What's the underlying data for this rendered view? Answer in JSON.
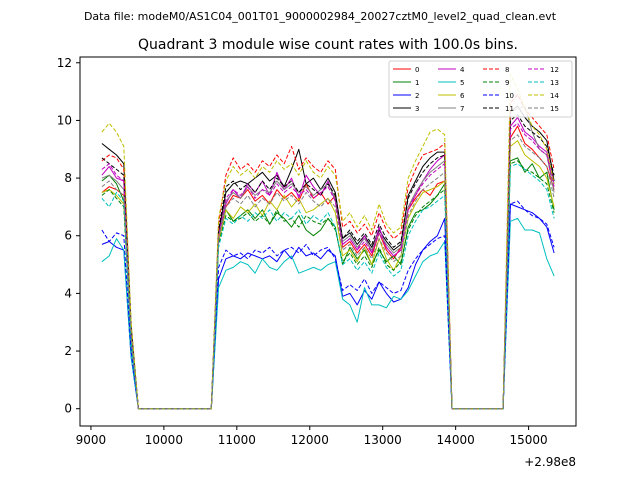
{
  "suptitle": "Data file: modeM0/AS1C04_001T01_9000002984_20027cztM0_level2_quad_clean.evt",
  "chart_data": {
    "type": "line",
    "title": "Quadrant 3 module wise count rates with 100.0s bins.",
    "xlabel": "",
    "ylabel": "",
    "x_offset_label": "+2.98e8",
    "xlim": [
      8850,
      15650
    ],
    "ylim": [
      -0.6,
      12.2
    ],
    "x_ticks": [
      9000,
      10000,
      11000,
      12000,
      13000,
      14000,
      15000
    ],
    "x_tick_labels": [
      "9000",
      "10000",
      "11000",
      "12000",
      "13000",
      "14000",
      "15000"
    ],
    "y_ticks": [
      0,
      2,
      4,
      6,
      8,
      10,
      12
    ],
    "y_tick_labels": [
      "0",
      "2",
      "4",
      "6",
      "8",
      "10",
      "12"
    ],
    "grid": false,
    "legend_placement": "top-right",
    "legend_columns": 4,
    "x": [
      9150,
      9250,
      9350,
      9450,
      9550,
      9650,
      9750,
      9850,
      9950,
      10050,
      10150,
      10250,
      10350,
      10450,
      10550,
      10650,
      10750,
      10850,
      10950,
      11050,
      11150,
      11250,
      11350,
      11450,
      11550,
      11650,
      11750,
      11850,
      11950,
      12050,
      12150,
      12250,
      12350,
      12450,
      12550,
      12650,
      12750,
      12850,
      12950,
      13050,
      13150,
      13250,
      13350,
      13450,
      13550,
      13650,
      13750,
      13850,
      13950,
      14050,
      14150,
      14250,
      14350,
      14450,
      14550,
      14650,
      14750,
      14850,
      14950,
      15050,
      15150,
      15250,
      15350
    ],
    "series": [
      {
        "name": "0",
        "color": "#ff0000",
        "dash": false,
        "values": [
          7.5,
          7.7,
          7.6,
          7.4,
          2.5,
          0,
          0,
          0,
          0,
          0,
          0,
          0,
          0,
          0,
          0,
          0,
          5.9,
          7.0,
          7.4,
          7.3,
          7.6,
          7.2,
          7.4,
          7.1,
          7.6,
          7.3,
          7.5,
          7.2,
          7.8,
          7.3,
          7.5,
          7.1,
          7.4,
          5.6,
          5.8,
          5.4,
          5.7,
          5.3,
          6.1,
          5.5,
          5.2,
          5.6,
          6.9,
          7.3,
          7.6,
          7.4,
          7.8,
          7.9,
          0,
          0,
          0,
          0,
          0,
          0,
          0,
          0,
          9.4,
          9.8,
          9.2,
          9.0,
          8.7,
          8.4,
          7.6
        ]
      },
      {
        "name": "1",
        "color": "#008000",
        "dash": false,
        "values": [
          7.9,
          8.1,
          7.8,
          7.2,
          2.4,
          0,
          0,
          0,
          0,
          0,
          0,
          0,
          0,
          0,
          0,
          0,
          5.8,
          6.9,
          6.5,
          6.7,
          6.9,
          6.6,
          6.9,
          6.4,
          6.8,
          6.6,
          6.3,
          6.7,
          6.2,
          6.0,
          6.2,
          6.6,
          6.3,
          5.0,
          5.6,
          5.2,
          5.5,
          5.0,
          5.5,
          5.1,
          5.3,
          5.0,
          6.3,
          6.8,
          6.9,
          7.1,
          7.4,
          7.8,
          0,
          0,
          0,
          0,
          0,
          0,
          0,
          0,
          8.6,
          8.7,
          8.2,
          8.5,
          8.0,
          8.2,
          6.9
        ]
      },
      {
        "name": "2",
        "color": "#0000ff",
        "dash": false,
        "values": [
          5.7,
          5.8,
          5.6,
          5.5,
          1.8,
          0,
          0,
          0,
          0,
          0,
          0,
          0,
          0,
          0,
          0,
          0,
          4.5,
          5.2,
          5.3,
          5.2,
          5.4,
          5.3,
          5.2,
          5.3,
          5.1,
          5.5,
          5.2,
          5.6,
          5.3,
          5.4,
          5.2,
          5.5,
          5.3,
          3.9,
          4.0,
          3.6,
          4.1,
          3.8,
          4.4,
          4.0,
          3.7,
          3.8,
          4.2,
          5.0,
          5.5,
          5.8,
          6.0,
          6.6,
          0,
          0,
          0,
          0,
          0,
          0,
          0,
          0,
          7.1,
          7.0,
          6.9,
          6.8,
          6.6,
          6.3,
          5.4
        ]
      },
      {
        "name": "3",
        "color": "#000000",
        "dash": false,
        "values": [
          9.2,
          9.0,
          8.8,
          8.5,
          2.9,
          0,
          0,
          0,
          0,
          0,
          0,
          0,
          0,
          0,
          0,
          0,
          6.1,
          7.5,
          7.8,
          7.9,
          7.8,
          8.0,
          8.2,
          7.9,
          8.1,
          7.7,
          8.3,
          9.0,
          7.8,
          8.0,
          7.6,
          8.0,
          7.5,
          5.9,
          6.1,
          5.7,
          6.0,
          5.6,
          6.2,
          5.8,
          5.5,
          5.7,
          7.4,
          7.9,
          8.4,
          8.7,
          8.9,
          8.9,
          0,
          0,
          0,
          0,
          0,
          0,
          0,
          0,
          10.3,
          10.5,
          10.1,
          9.8,
          9.6,
          9.3,
          7.9
        ]
      },
      {
        "name": "4",
        "color": "#c000c0",
        "dash": false,
        "values": [
          8.1,
          8.4,
          8.0,
          7.9,
          2.6,
          0,
          0,
          0,
          0,
          0,
          0,
          0,
          0,
          0,
          0,
          0,
          5.9,
          7.1,
          7.6,
          7.3,
          7.8,
          7.5,
          7.9,
          7.4,
          8.2,
          7.6,
          8.0,
          7.3,
          8.1,
          7.7,
          7.4,
          7.9,
          7.2,
          5.7,
          5.9,
          5.5,
          6.0,
          5.4,
          6.3,
          5.6,
          5.3,
          5.5,
          7.0,
          7.4,
          7.9,
          8.3,
          8.6,
          8.8,
          0,
          0,
          0,
          0,
          0,
          0,
          0,
          0,
          9.8,
          10.1,
          9.6,
          9.4,
          9.1,
          8.9,
          7.8
        ]
      },
      {
        "name": "5",
        "color": "#00bfbf",
        "dash": false,
        "values": [
          5.1,
          5.3,
          5.9,
          5.5,
          1.8,
          0,
          0,
          0,
          0,
          0,
          0,
          0,
          0,
          0,
          0,
          0,
          4.2,
          4.8,
          4.9,
          5.1,
          5.0,
          4.7,
          5.2,
          4.9,
          4.8,
          5.1,
          5.3,
          4.7,
          4.8,
          4.9,
          4.8,
          5.0,
          5.1,
          3.8,
          3.6,
          3.0,
          4.2,
          3.6,
          3.6,
          3.5,
          3.9,
          3.8,
          4.1,
          4.6,
          5.1,
          5.3,
          5.4,
          5.8,
          0,
          0,
          0,
          0,
          0,
          0,
          0,
          0,
          6.5,
          6.6,
          6.2,
          6.2,
          6.1,
          5.2,
          4.6
        ]
      },
      {
        "name": "6",
        "color": "#bfbf00",
        "dash": false,
        "values": [
          7.5,
          7.6,
          7.4,
          7.1,
          2.4,
          0,
          0,
          0,
          0,
          0,
          0,
          0,
          0,
          0,
          0,
          0,
          5.8,
          6.9,
          6.6,
          7.0,
          6.8,
          7.1,
          6.7,
          7.2,
          6.9,
          7.4,
          7.0,
          7.3,
          6.8,
          6.9,
          7.1,
          7.3,
          6.8,
          5.3,
          5.5,
          5.1,
          5.6,
          5.0,
          5.9,
          5.2,
          4.8,
          5.3,
          6.6,
          7.1,
          7.5,
          7.6,
          7.7,
          7.9,
          0,
          0,
          0,
          0,
          0,
          0,
          0,
          0,
          9.1,
          9.3,
          8.8,
          8.6,
          8.4,
          8.0,
          7.0
        ]
      },
      {
        "name": "7",
        "color": "#808080",
        "dash": false,
        "values": [
          8.0,
          8.1,
          7.9,
          7.6,
          2.5,
          0,
          0,
          0,
          0,
          0,
          0,
          0,
          0,
          0,
          0,
          0,
          6.0,
          7.2,
          7.5,
          7.3,
          7.7,
          7.4,
          7.6,
          7.5,
          7.9,
          7.6,
          7.8,
          7.5,
          7.7,
          7.4,
          7.6,
          7.8,
          7.3,
          5.8,
          6.0,
          5.6,
          5.9,
          5.5,
          6.1,
          5.7,
          5.4,
          5.6,
          7.0,
          7.5,
          7.9,
          8.2,
          8.4,
          8.6,
          0,
          0,
          0,
          0,
          0,
          0,
          0,
          0,
          10.3,
          10.4,
          10.5,
          9.6,
          9.0,
          8.8,
          7.5
        ]
      },
      {
        "name": "8",
        "color": "#ff0000",
        "dash": true,
        "values": [
          8.6,
          8.8,
          8.7,
          8.3,
          2.8,
          0,
          0,
          0,
          0,
          0,
          0,
          0,
          0,
          0,
          0,
          0,
          6.4,
          8.1,
          8.7,
          8.3,
          8.5,
          8.2,
          8.6,
          8.4,
          8.8,
          8.5,
          9.1,
          8.3,
          8.7,
          8.4,
          8.2,
          8.6,
          8.3,
          6.3,
          6.5,
          6.1,
          6.4,
          6.0,
          6.8,
          6.2,
          5.9,
          6.1,
          7.7,
          8.3,
          8.8,
          8.9,
          9.0,
          9.2,
          0,
          0,
          0,
          0,
          0,
          0,
          0,
          0,
          10.6,
          10.9,
          10.4,
          10.1,
          9.8,
          9.5,
          8.3
        ]
      },
      {
        "name": "9",
        "color": "#008000",
        "dash": true,
        "values": [
          7.4,
          7.6,
          7.3,
          7.0,
          2.3,
          0,
          0,
          0,
          0,
          0,
          0,
          0,
          0,
          0,
          0,
          0,
          5.7,
          6.7,
          6.5,
          6.6,
          6.8,
          6.5,
          6.7,
          6.4,
          6.9,
          6.5,
          6.6,
          6.3,
          6.7,
          6.5,
          6.4,
          6.6,
          6.2,
          5.1,
          5.4,
          5.0,
          5.3,
          4.9,
          5.6,
          5.0,
          4.8,
          5.1,
          6.2,
          6.7,
          7.0,
          7.2,
          7.4,
          7.6,
          0,
          0,
          0,
          0,
          0,
          0,
          0,
          0,
          8.5,
          8.6,
          8.3,
          8.2,
          8.0,
          7.8,
          6.8
        ]
      },
      {
        "name": "10",
        "color": "#0000ff",
        "dash": true,
        "values": [
          6.2,
          5.8,
          6.1,
          6.0,
          2.0,
          0,
          0,
          0,
          0,
          0,
          0,
          0,
          0,
          0,
          0,
          0,
          4.9,
          5.5,
          5.3,
          5.4,
          5.2,
          5.5,
          5.4,
          5.6,
          5.3,
          5.5,
          5.6,
          5.4,
          5.7,
          5.3,
          5.5,
          5.6,
          5.2,
          4.1,
          4.3,
          4.1,
          4.5,
          4.0,
          4.4,
          4.2,
          4.0,
          4.1,
          4.8,
          5.2,
          5.5,
          5.7,
          5.9,
          6.0,
          0,
          0,
          0,
          0,
          0,
          0,
          0,
          0,
          7.1,
          7.2,
          6.9,
          6.7,
          6.6,
          6.4,
          5.6
        ]
      },
      {
        "name": "11",
        "color": "#000000",
        "dash": true,
        "values": [
          8.7,
          8.5,
          8.3,
          8.1,
          2.7,
          0,
          0,
          0,
          0,
          0,
          0,
          0,
          0,
          0,
          0,
          0,
          6.2,
          7.7,
          7.9,
          7.6,
          7.8,
          7.5,
          7.9,
          7.6,
          8.0,
          7.7,
          7.9,
          7.5,
          7.8,
          7.6,
          7.4,
          7.8,
          7.4,
          5.9,
          6.2,
          5.8,
          6.1,
          5.7,
          6.4,
          5.9,
          5.6,
          5.8,
          7.3,
          7.8,
          8.2,
          8.5,
          8.7,
          8.8,
          0,
          0,
          0,
          0,
          0,
          0,
          0,
          0,
          10.0,
          10.2,
          9.8,
          9.6,
          9.4,
          9.1,
          8.1
        ]
      },
      {
        "name": "12",
        "color": "#c000c0",
        "dash": true,
        "values": [
          8.3,
          8.5,
          8.1,
          7.9,
          2.6,
          0,
          0,
          0,
          0,
          0,
          0,
          0,
          0,
          0,
          0,
          0,
          6.0,
          7.3,
          7.6,
          7.4,
          7.7,
          7.3,
          7.6,
          7.4,
          7.8,
          7.5,
          7.7,
          7.4,
          7.6,
          7.3,
          7.5,
          7.7,
          7.2,
          5.7,
          5.9,
          5.5,
          5.8,
          5.4,
          6.1,
          5.6,
          5.3,
          5.5,
          6.9,
          7.4,
          7.8,
          8.1,
          8.3,
          8.5,
          0,
          0,
          0,
          0,
          0,
          0,
          0,
          0,
          9.7,
          9.9,
          9.5,
          9.3,
          9.0,
          8.8,
          7.7
        ]
      },
      {
        "name": "13",
        "color": "#00bfbf",
        "dash": true,
        "values": [
          7.3,
          7.0,
          7.5,
          7.2,
          2.4,
          0,
          0,
          0,
          0,
          0,
          0,
          0,
          0,
          0,
          0,
          0,
          5.6,
          6.6,
          6.4,
          6.7,
          6.5,
          6.8,
          6.6,
          6.9,
          6.5,
          6.8,
          6.6,
          6.9,
          6.4,
          6.7,
          6.5,
          6.8,
          6.3,
          5.0,
          5.2,
          4.8,
          5.1,
          4.7,
          5.4,
          4.9,
          4.6,
          4.8,
          6.0,
          6.5,
          6.9,
          7.0,
          7.2,
          7.4,
          0,
          0,
          0,
          0,
          0,
          0,
          0,
          0,
          8.4,
          8.5,
          8.3,
          8.1,
          7.9,
          7.6,
          6.6
        ]
      },
      {
        "name": "14",
        "color": "#bfbf00",
        "dash": true,
        "values": [
          9.6,
          9.9,
          9.6,
          9.1,
          3.0,
          0,
          0,
          0,
          0,
          0,
          0,
          0,
          0,
          0,
          0,
          0,
          6.6,
          7.9,
          8.4,
          8.1,
          8.3,
          8.0,
          8.4,
          8.2,
          8.6,
          8.3,
          8.5,
          8.1,
          8.6,
          8.2,
          8.0,
          8.4,
          8.1,
          6.5,
          6.8,
          6.3,
          6.7,
          6.2,
          7.1,
          6.4,
          6.1,
          6.3,
          8.0,
          8.6,
          9.1,
          9.6,
          9.7,
          9.5,
          0,
          0,
          0,
          0,
          0,
          0,
          0,
          0,
          11.6,
          11.1,
          10.4,
          9.8,
          9.5,
          9.0,
          7.8
        ]
      },
      {
        "name": "15",
        "color": "#808080",
        "dash": true,
        "values": [
          7.7,
          7.9,
          7.6,
          7.4,
          2.5,
          0,
          0,
          0,
          0,
          0,
          0,
          0,
          0,
          0,
          0,
          0,
          5.9,
          7.0,
          7.3,
          7.1,
          7.4,
          7.0,
          7.3,
          7.1,
          7.5,
          7.2,
          7.4,
          7.1,
          7.5,
          7.2,
          7.0,
          7.3,
          7.0,
          5.5,
          5.7,
          5.3,
          5.6,
          5.2,
          5.9,
          5.4,
          5.1,
          5.3,
          6.7,
          7.2,
          7.6,
          7.8,
          8.0,
          8.2,
          0,
          0,
          0,
          0,
          0,
          0,
          0,
          0,
          9.3,
          9.5,
          9.1,
          8.9,
          8.7,
          8.4,
          7.3
        ]
      }
    ]
  }
}
